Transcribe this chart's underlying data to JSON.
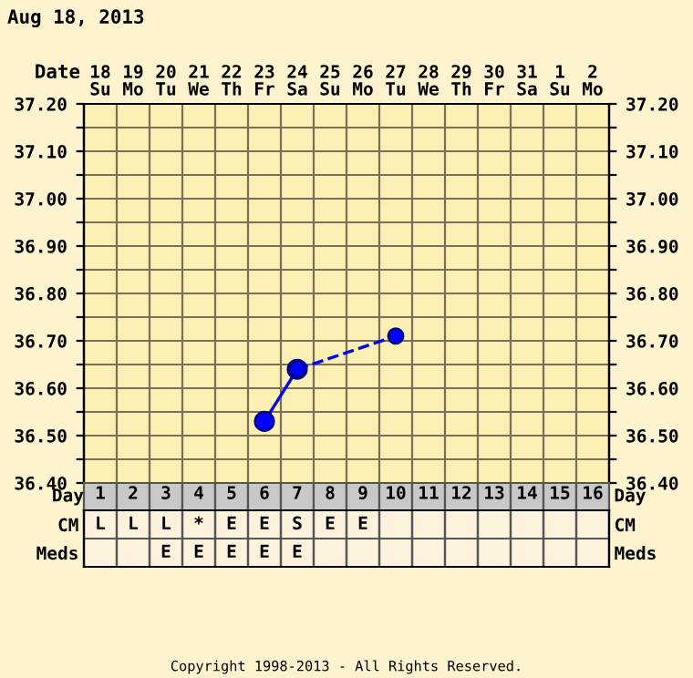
{
  "chart_data": [
    {
      "type": "line",
      "title": "Aug 18, 2013",
      "xlabel": "Date",
      "categories": [
        "18\nSu",
        "19\nMo",
        "20\nTu",
        "21\nWe",
        "22\nTh",
        "23\nFr",
        "24\nSa",
        "25\nSu",
        "26\nMo",
        "27\nTu",
        "28\nWe",
        "29\nTh",
        "30\nFr",
        "31\nSa",
        "1\nSu",
        "2\nMo"
      ],
      "series": [
        {
          "color": "#0000ff",
          "line_style": "solid",
          "values": [
            null,
            null,
            null,
            null,
            null,
            36.53,
            36.64,
            null,
            null,
            null,
            null,
            null,
            null,
            null,
            null,
            null
          ]
        },
        {
          "color": "#0000ff",
          "line_style": "dashed",
          "values": [
            null,
            null,
            null,
            null,
            null,
            null,
            36.64,
            null,
            null,
            36.71,
            null,
            null,
            null,
            null,
            null,
            null
          ]
        }
      ],
      "marker": "circle",
      "ylim": [
        36.4,
        37.2
      ],
      "yticks": [
        {
          "value": 36.4,
          "label": "36.40"
        },
        {
          "value": 36.45,
          "label": null
        },
        {
          "value": 36.5,
          "label": "36.50"
        },
        {
          "value": 36.55,
          "label": null
        },
        {
          "value": 36.6,
          "label": "36.60"
        },
        {
          "value": 36.65,
          "label": null
        },
        {
          "value": 36.7,
          "label": "36.70"
        },
        {
          "value": 36.75,
          "label": null
        },
        {
          "value": 36.8,
          "label": "36.80"
        },
        {
          "value": 36.85,
          "label": null
        },
        {
          "value": 36.9,
          "label": "36.90"
        },
        {
          "value": 36.95,
          "label": null
        },
        {
          "value": 37.0,
          "label": "37.00"
        },
        {
          "value": 37.05,
          "label": null
        },
        {
          "value": 37.1,
          "label": "37.10"
        },
        {
          "value": 37.15,
          "label": null
        },
        {
          "value": 37.2,
          "label": "37.20"
        }
      ],
      "y2lim": [
        36.4,
        37.2
      ],
      "y2ticks": [
        {
          "value": 36.4,
          "label": "36.40"
        },
        {
          "value": 36.45,
          "label": null
        },
        {
          "value": 36.5,
          "label": "36.50"
        },
        {
          "value": 36.55,
          "label": null
        },
        {
          "value": 36.6,
          "label": "36.60"
        },
        {
          "value": 36.65,
          "label": null
        },
        {
          "value": 36.7,
          "label": "36.70"
        },
        {
          "value": 36.75,
          "label": null
        },
        {
          "value": 36.8,
          "label": "36.80"
        },
        {
          "value": 36.85,
          "label": null
        },
        {
          "value": 36.9,
          "label": "36.90"
        },
        {
          "value": 36.95,
          "label": null
        },
        {
          "value": 37.0,
          "label": "37.00"
        },
        {
          "value": 37.05,
          "label": null
        },
        {
          "value": 37.1,
          "label": "37.10"
        },
        {
          "value": 37.15,
          "label": null
        },
        {
          "value": 37.2,
          "label": "37.20"
        }
      ],
      "grid": true
    },
    {
      "type": "heatmap",
      "xlabel": "Day",
      "categories": [
        "1",
        "2",
        "3",
        "4",
        "5",
        "6",
        "7",
        "8",
        "9",
        "10",
        "11",
        "12",
        "13",
        "14",
        "15",
        "16"
      ],
      "y_categories": [
        "CM",
        "Meds"
      ],
      "y2_categories": [
        "CM",
        "Meds"
      ],
      "cells": [
        [
          null,
          null,
          null,
          null,
          null,
          null,
          null,
          null,
          null,
          null,
          null,
          null,
          null,
          null,
          null,
          null
        ],
        [
          null,
          null,
          null,
          null,
          null,
          null,
          null,
          null,
          null,
          null,
          null,
          null,
          null,
          null,
          null,
          null
        ]
      ],
      "cell_labels": [
        [
          "L",
          "L",
          "L",
          "*",
          "E",
          "E",
          "S",
          "E",
          "E",
          null,
          null,
          null,
          null,
          null,
          null,
          null
        ],
        [
          null,
          null,
          "E",
          "E",
          "E",
          "E",
          "E",
          null,
          null,
          null,
          null,
          null,
          null,
          null,
          null,
          null
        ]
      ],
      "annotations": [
        "Copyright 1998-2013 - All Rights Reserved."
      ]
    }
  ]
}
